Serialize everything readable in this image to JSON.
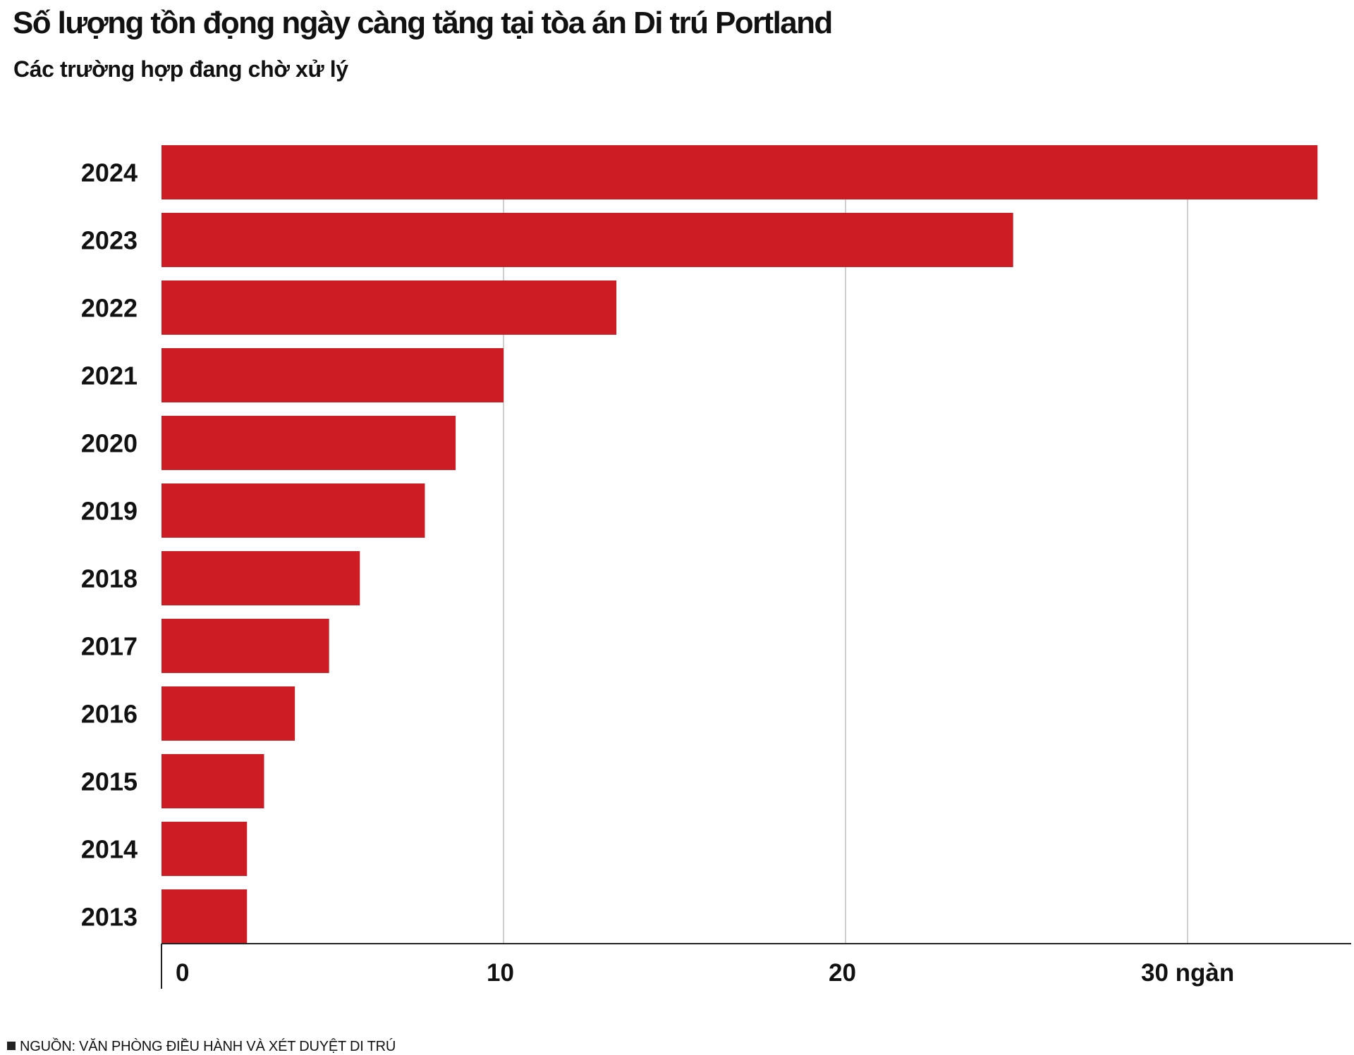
{
  "title": "Số lượng tồn đọng ngày càng tăng tại tòa án Di trú Portland",
  "subtitle": "Các trường hợp đang chờ xử lý",
  "source": "NGUỒN: VĂN PHÒNG ĐIỀU HÀNH VÀ XÉT DUYỆT DI TRÚ",
  "colors": {
    "bar": "#CE1C24",
    "gridline": "#bfbfbf",
    "axis": "#222222",
    "text": "#111111"
  },
  "chart_data": {
    "type": "bar",
    "orientation": "horizontal",
    "title": "Số lượng tồn đọng ngày càng tăng tại tòa án Di trú Portland",
    "subtitle": "Các trường hợp đang chờ xử lý",
    "categories": [
      "2024",
      "2023",
      "2022",
      "2021",
      "2020",
      "2019",
      "2018",
      "2017",
      "2016",
      "2015",
      "2014",
      "2013"
    ],
    "values": [
      33.8,
      24.9,
      13.3,
      10.0,
      8.6,
      7.7,
      5.8,
      4.9,
      3.9,
      3.0,
      2.5,
      2.5
    ],
    "value_unit": "ngàn",
    "xlim": [
      0,
      35
    ],
    "x_ticks": [
      {
        "value": 0,
        "label": "0"
      },
      {
        "value": 10,
        "label": "10"
      },
      {
        "value": 20,
        "label": "20"
      },
      {
        "value": 30,
        "label": "30 ngàn"
      }
    ],
    "grid": true,
    "legend": "none"
  }
}
